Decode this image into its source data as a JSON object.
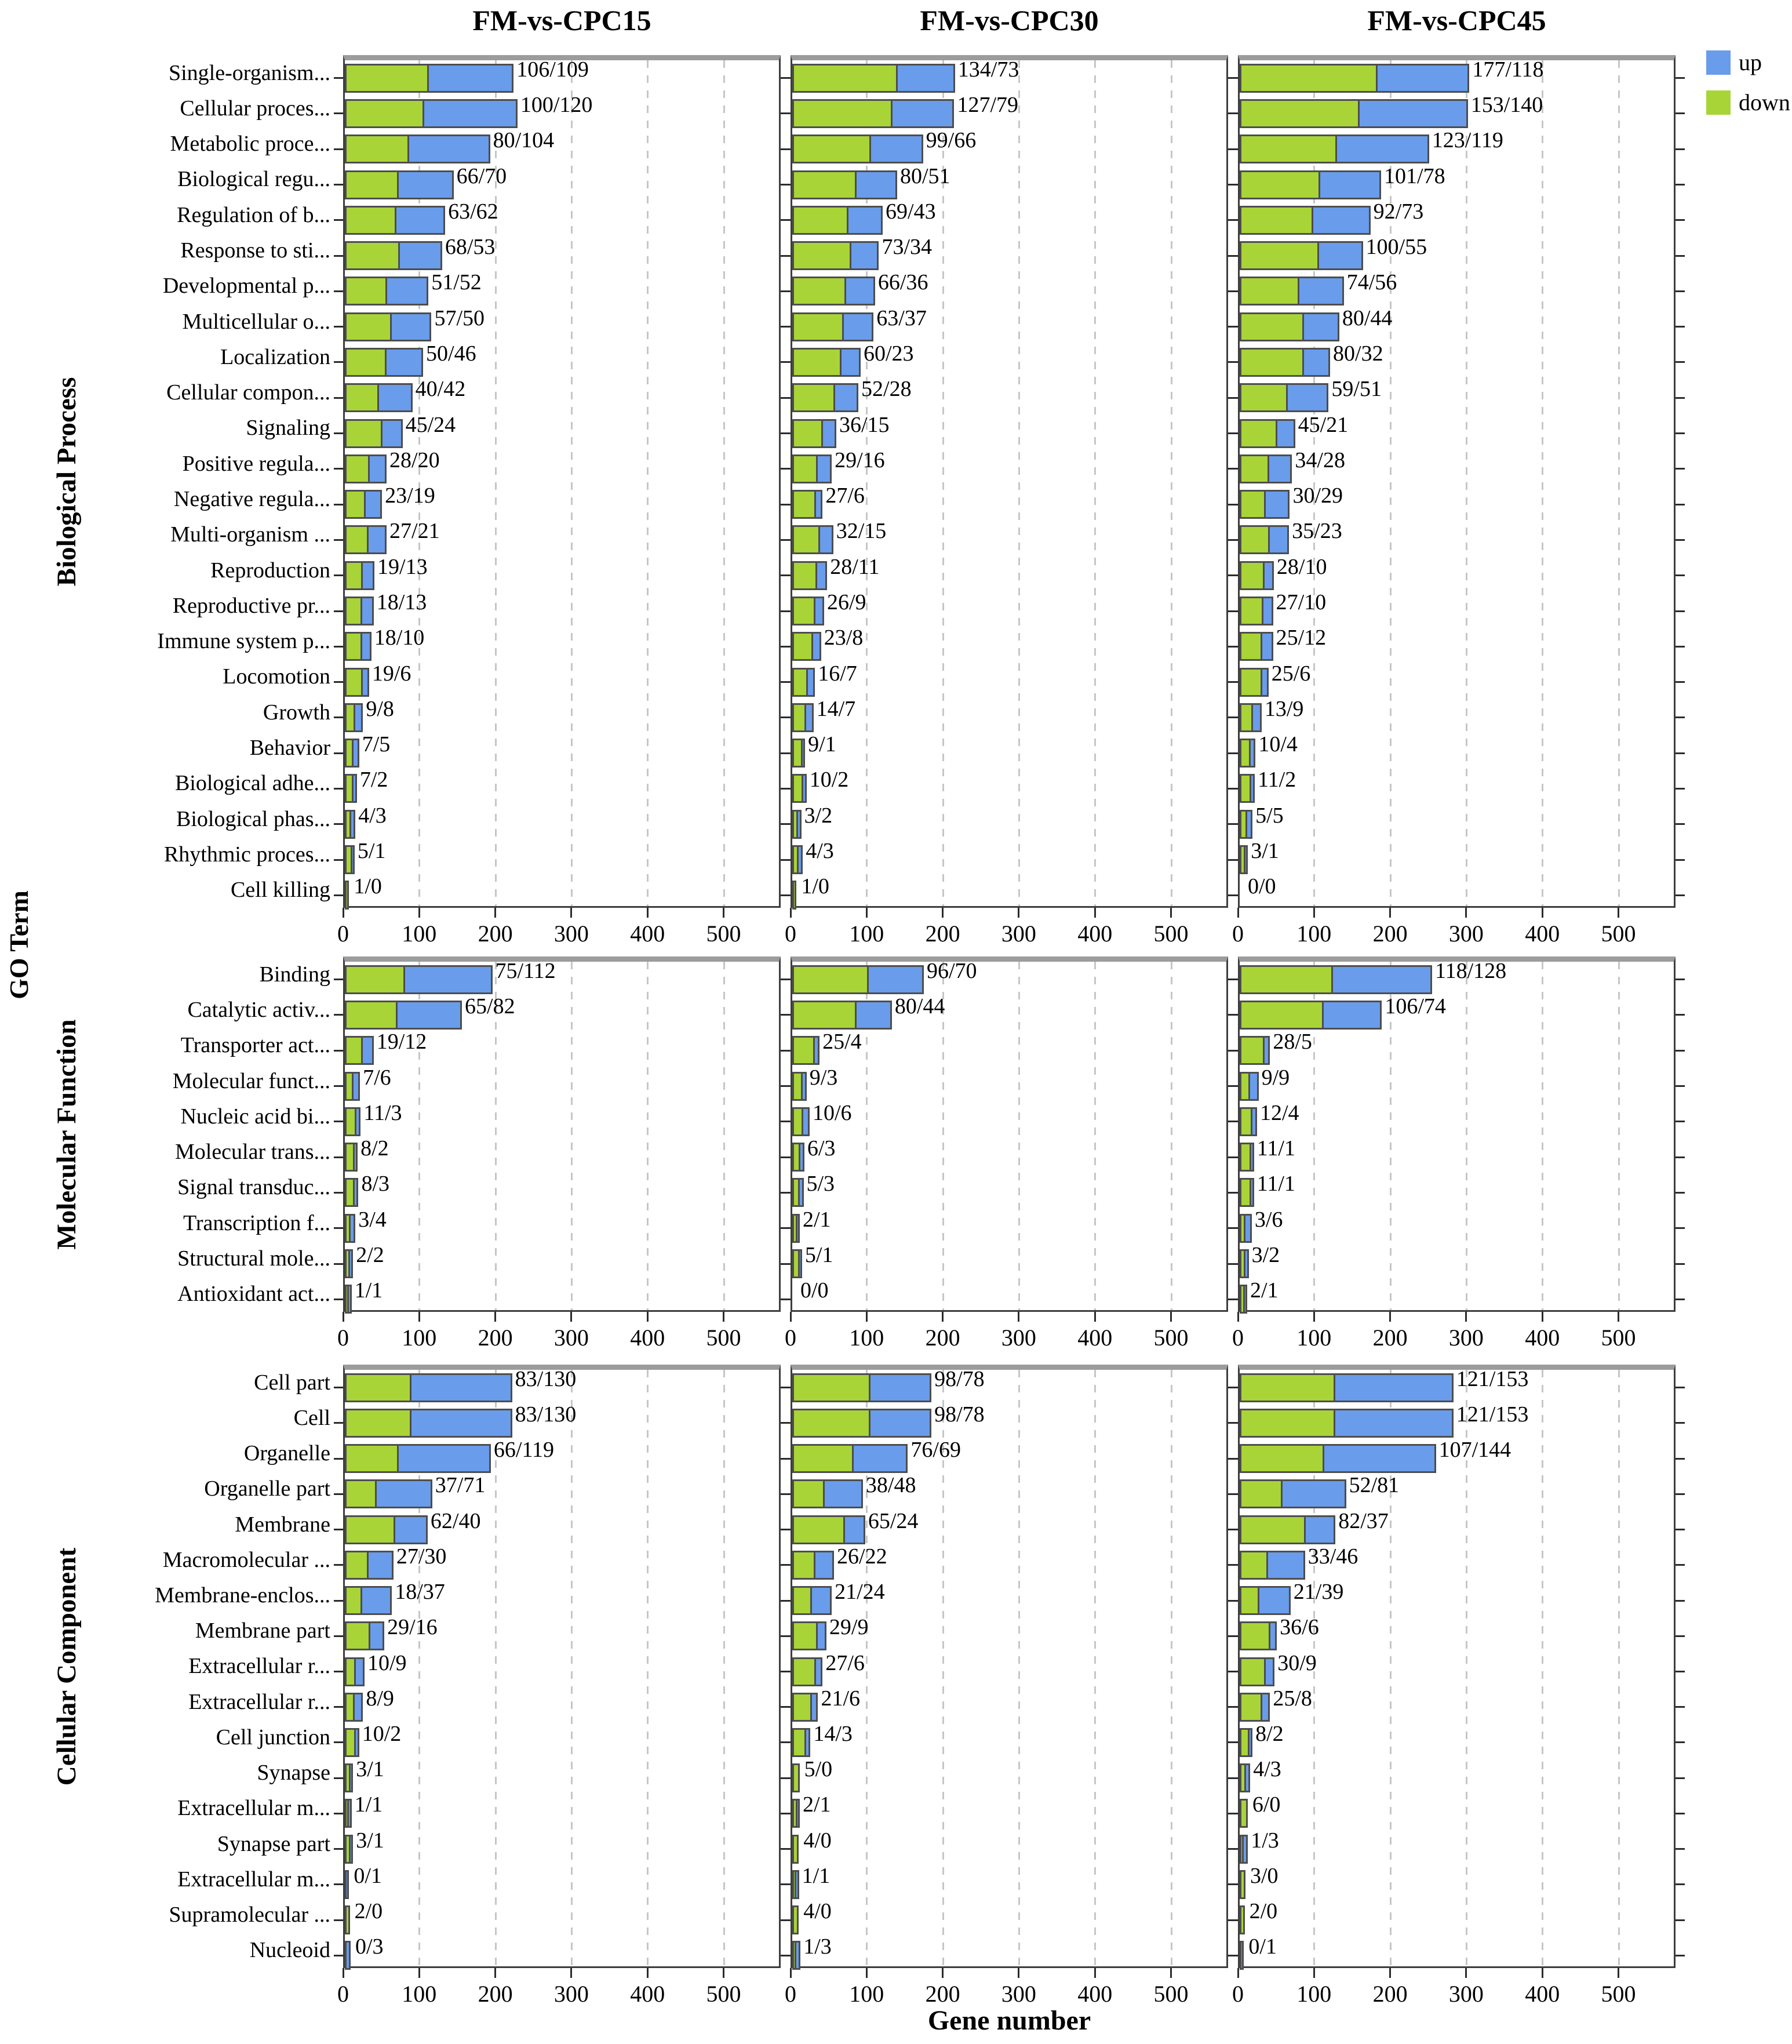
{
  "chart_data": {
    "type": "bar",
    "orientation": "horizontal",
    "stacked": true,
    "xlabel": "Gene number",
    "ylabel": "GO Term",
    "x_ticks": [
      0,
      100,
      200,
      300,
      400,
      500
    ],
    "x_max": 575,
    "grid": "vertical dashed gridlines at 100-500",
    "legend_position": "top-right",
    "columns": [
      "FM-vs-CPC15",
      "FM-vs-CPC30",
      "FM-vs-CPC45"
    ],
    "series_legend": [
      {
        "name": "up",
        "color": "#699CEB"
      },
      {
        "name": "down",
        "color": "#A9D437"
      }
    ],
    "value_label_format": "each bar labeled 'green/blue' = 'down/up' counts",
    "sections": [
      {
        "name": "Biological Process",
        "rows": [
          {
            "label": "Single-organism...",
            "down_up": [
              [
                106,
                109
              ],
              [
                134,
                73
              ],
              [
                177,
                118
              ]
            ]
          },
          {
            "label": "Cellular proces...",
            "down_up": [
              [
                100,
                120
              ],
              [
                127,
                79
              ],
              [
                153,
                140
              ]
            ]
          },
          {
            "label": "Metabolic proce...",
            "down_up": [
              [
                80,
                104
              ],
              [
                99,
                66
              ],
              [
                123,
                119
              ]
            ]
          },
          {
            "label": "Biological regu...",
            "down_up": [
              [
                66,
                70
              ],
              [
                80,
                51
              ],
              [
                101,
                78
              ]
            ]
          },
          {
            "label": "Regulation of b...",
            "down_up": [
              [
                63,
                62
              ],
              [
                69,
                43
              ],
              [
                92,
                73
              ]
            ]
          },
          {
            "label": "Response to sti...",
            "down_up": [
              [
                68,
                53
              ],
              [
                73,
                34
              ],
              [
                100,
                55
              ]
            ]
          },
          {
            "label": "Developmental p...",
            "down_up": [
              [
                51,
                52
              ],
              [
                66,
                36
              ],
              [
                74,
                56
              ]
            ]
          },
          {
            "label": "Multicellular o...",
            "down_up": [
              [
                57,
                50
              ],
              [
                63,
                37
              ],
              [
                80,
                44
              ]
            ]
          },
          {
            "label": "Localization",
            "down_up": [
              [
                50,
                46
              ],
              [
                60,
                23
              ],
              [
                80,
                32
              ]
            ]
          },
          {
            "label": "Cellular compon...",
            "down_up": [
              [
                40,
                42
              ],
              [
                52,
                28
              ],
              [
                59,
                51
              ]
            ]
          },
          {
            "label": "Signaling",
            "down_up": [
              [
                45,
                24
              ],
              [
                36,
                15
              ],
              [
                45,
                21
              ]
            ]
          },
          {
            "label": "Positive regula...",
            "down_up": [
              [
                28,
                20
              ],
              [
                29,
                16
              ],
              [
                34,
                28
              ]
            ]
          },
          {
            "label": "Negative regula...",
            "down_up": [
              [
                23,
                19
              ],
              [
                27,
                6
              ],
              [
                30,
                29
              ]
            ]
          },
          {
            "label": "Multi-organism ...",
            "down_up": [
              [
                27,
                21
              ],
              [
                32,
                15
              ],
              [
                35,
                23
              ]
            ]
          },
          {
            "label": "Reproduction",
            "down_up": [
              [
                19,
                13
              ],
              [
                28,
                11
              ],
              [
                28,
                10
              ]
            ]
          },
          {
            "label": "Reproductive pr...",
            "down_up": [
              [
                18,
                13
              ],
              [
                26,
                9
              ],
              [
                27,
                10
              ]
            ]
          },
          {
            "label": "Immune system p...",
            "down_up": [
              [
                18,
                10
              ],
              [
                23,
                8
              ],
              [
                25,
                12
              ]
            ]
          },
          {
            "label": "Locomotion",
            "down_up": [
              [
                19,
                6
              ],
              [
                16,
                7
              ],
              [
                25,
                6
              ]
            ]
          },
          {
            "label": "Growth",
            "down_up": [
              [
                9,
                8
              ],
              [
                14,
                7
              ],
              [
                13,
                9
              ]
            ]
          },
          {
            "label": "Behavior",
            "down_up": [
              [
                7,
                5
              ],
              [
                9,
                1
              ],
              [
                10,
                4
              ]
            ]
          },
          {
            "label": "Biological adhe...",
            "down_up": [
              [
                7,
                2
              ],
              [
                10,
                2
              ],
              [
                11,
                2
              ]
            ]
          },
          {
            "label": "Biological phas...",
            "down_up": [
              [
                4,
                3
              ],
              [
                3,
                2
              ],
              [
                5,
                5
              ]
            ]
          },
          {
            "label": "Rhythmic proces...",
            "down_up": [
              [
                5,
                1
              ],
              [
                4,
                3
              ],
              [
                3,
                1
              ]
            ]
          },
          {
            "label": "Cell killing",
            "down_up": [
              [
                1,
                0
              ],
              [
                1,
                0
              ],
              [
                0,
                0
              ]
            ]
          }
        ]
      },
      {
        "name": "Molecular Function",
        "rows": [
          {
            "label": "Binding",
            "down_up": [
              [
                75,
                112
              ],
              [
                96,
                70
              ],
              [
                118,
                128
              ]
            ]
          },
          {
            "label": "Catalytic activ...",
            "down_up": [
              [
                65,
                82
              ],
              [
                80,
                44
              ],
              [
                106,
                74
              ]
            ]
          },
          {
            "label": "Transporter act...",
            "down_up": [
              [
                19,
                12
              ],
              [
                25,
                4
              ],
              [
                28,
                5
              ]
            ]
          },
          {
            "label": "Molecular funct...",
            "down_up": [
              [
                7,
                6
              ],
              [
                9,
                3
              ],
              [
                9,
                9
              ]
            ]
          },
          {
            "label": "Nucleic acid bi...",
            "down_up": [
              [
                11,
                3
              ],
              [
                10,
                6
              ],
              [
                12,
                4
              ]
            ]
          },
          {
            "label": "Molecular trans...",
            "down_up": [
              [
                8,
                2
              ],
              [
                6,
                3
              ],
              [
                11,
                1
              ]
            ]
          },
          {
            "label": "Signal transduc...",
            "down_up": [
              [
                8,
                3
              ],
              [
                5,
                3
              ],
              [
                11,
                1
              ]
            ]
          },
          {
            "label": "Transcription f...",
            "down_up": [
              [
                3,
                4
              ],
              [
                2,
                1
              ],
              [
                3,
                6
              ]
            ]
          },
          {
            "label": "Structural mole...",
            "down_up": [
              [
                2,
                2
              ],
              [
                5,
                1
              ],
              [
                3,
                2
              ]
            ]
          },
          {
            "label": "Antioxidant act...",
            "down_up": [
              [
                1,
                1
              ],
              [
                0,
                0
              ],
              [
                2,
                1
              ]
            ]
          }
        ]
      },
      {
        "name": "Cellular Component",
        "rows": [
          {
            "label": "Cell part",
            "down_up": [
              [
                83,
                130
              ],
              [
                98,
                78
              ],
              [
                121,
                153
              ]
            ]
          },
          {
            "label": "Cell",
            "down_up": [
              [
                83,
                130
              ],
              [
                98,
                78
              ],
              [
                121,
                153
              ]
            ]
          },
          {
            "label": "Organelle",
            "down_up": [
              [
                66,
                119
              ],
              [
                76,
                69
              ],
              [
                107,
                144
              ]
            ]
          },
          {
            "label": "Organelle part",
            "down_up": [
              [
                37,
                71
              ],
              [
                38,
                48
              ],
              [
                52,
                81
              ]
            ]
          },
          {
            "label": "Membrane",
            "down_up": [
              [
                62,
                40
              ],
              [
                65,
                24
              ],
              [
                82,
                37
              ]
            ]
          },
          {
            "label": "Macromolecular ...",
            "down_up": [
              [
                27,
                30
              ],
              [
                26,
                22
              ],
              [
                33,
                46
              ]
            ]
          },
          {
            "label": "Membrane-enclos...",
            "down_up": [
              [
                18,
                37
              ],
              [
                21,
                24
              ],
              [
                21,
                39
              ]
            ]
          },
          {
            "label": "Membrane part",
            "down_up": [
              [
                29,
                16
              ],
              [
                29,
                9
              ],
              [
                36,
                6
              ]
            ]
          },
          {
            "label": "Extracellular r...",
            "down_up": [
              [
                10,
                9
              ],
              [
                27,
                6
              ],
              [
                30,
                9
              ]
            ]
          },
          {
            "label": "Extracellular r...",
            "down_up": [
              [
                8,
                9
              ],
              [
                21,
                6
              ],
              [
                25,
                8
              ]
            ]
          },
          {
            "label": "Cell junction",
            "down_up": [
              [
                10,
                2
              ],
              [
                14,
                3
              ],
              [
                8,
                2
              ]
            ]
          },
          {
            "label": "Synapse",
            "down_up": [
              [
                3,
                1
              ],
              [
                5,
                0
              ],
              [
                4,
                3
              ]
            ]
          },
          {
            "label": "Extracellular m...",
            "down_up": [
              [
                1,
                1
              ],
              [
                2,
                1
              ],
              [
                6,
                0
              ]
            ]
          },
          {
            "label": "Synapse part",
            "down_up": [
              [
                3,
                1
              ],
              [
                4,
                0
              ],
              [
                1,
                3
              ]
            ]
          },
          {
            "label": "Extracellular m...",
            "down_up": [
              [
                0,
                1
              ],
              [
                1,
                1
              ],
              [
                3,
                0
              ]
            ]
          },
          {
            "label": "Supramolecular ...",
            "down_up": [
              [
                2,
                0
              ],
              [
                4,
                0
              ],
              [
                2,
                0
              ]
            ]
          },
          {
            "label": "Nucleoid",
            "down_up": [
              [
                0,
                3
              ],
              [
                1,
                3
              ],
              [
                0,
                1
              ]
            ]
          }
        ]
      }
    ]
  }
}
